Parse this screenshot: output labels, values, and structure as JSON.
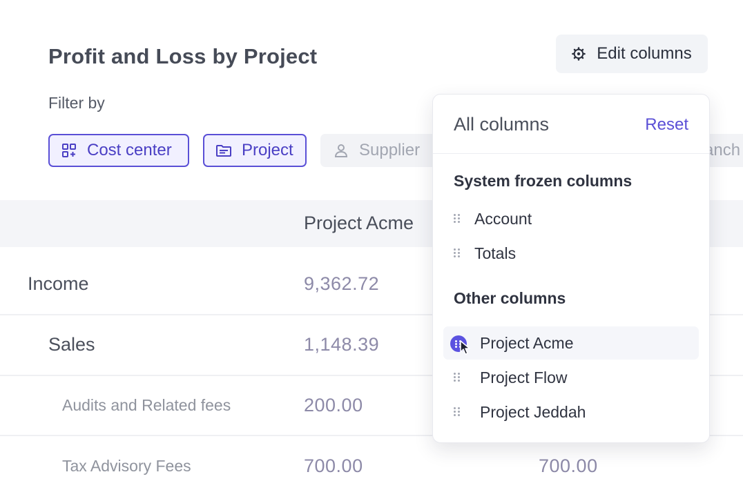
{
  "header": {
    "title": "Profit and Loss by Project",
    "edit_columns_label": "Edit columns",
    "filter_label": "Filter by"
  },
  "filters": [
    {
      "label": "Cost center",
      "icon": "grid-add-icon",
      "active": true
    },
    {
      "label": "Project",
      "icon": "folder-icon",
      "active": true
    },
    {
      "label": "Supplier",
      "icon": "user-icon",
      "active": false
    },
    {
      "label": "ranch",
      "icon": "",
      "active": false
    }
  ],
  "table": {
    "columns": [
      "Project Acme"
    ],
    "rows": [
      {
        "label": "Income",
        "level": 1,
        "values": [
          "9,362.72",
          ""
        ]
      },
      {
        "label": "Sales",
        "level": 2,
        "values": [
          "1,148.39",
          ""
        ]
      },
      {
        "label": "Audits and Related fees",
        "level": 3,
        "values": [
          "200.00",
          ""
        ]
      },
      {
        "label": "Tax Advisory Fees",
        "level": 3,
        "values": [
          "700.00",
          "700.00"
        ]
      }
    ]
  },
  "popover": {
    "title": "All columns",
    "reset_label": "Reset",
    "frozen_section": "System frozen columns",
    "frozen_items": [
      "Account",
      "Totals"
    ],
    "other_section": "Other columns",
    "other_items": [
      "Project Acme",
      "Project Flow",
      "Project Jeddah"
    ]
  },
  "colors": {
    "accent": "#5a4fd6",
    "accent_bg": "#f1f0ff",
    "header_bg": "#f4f5f8"
  }
}
